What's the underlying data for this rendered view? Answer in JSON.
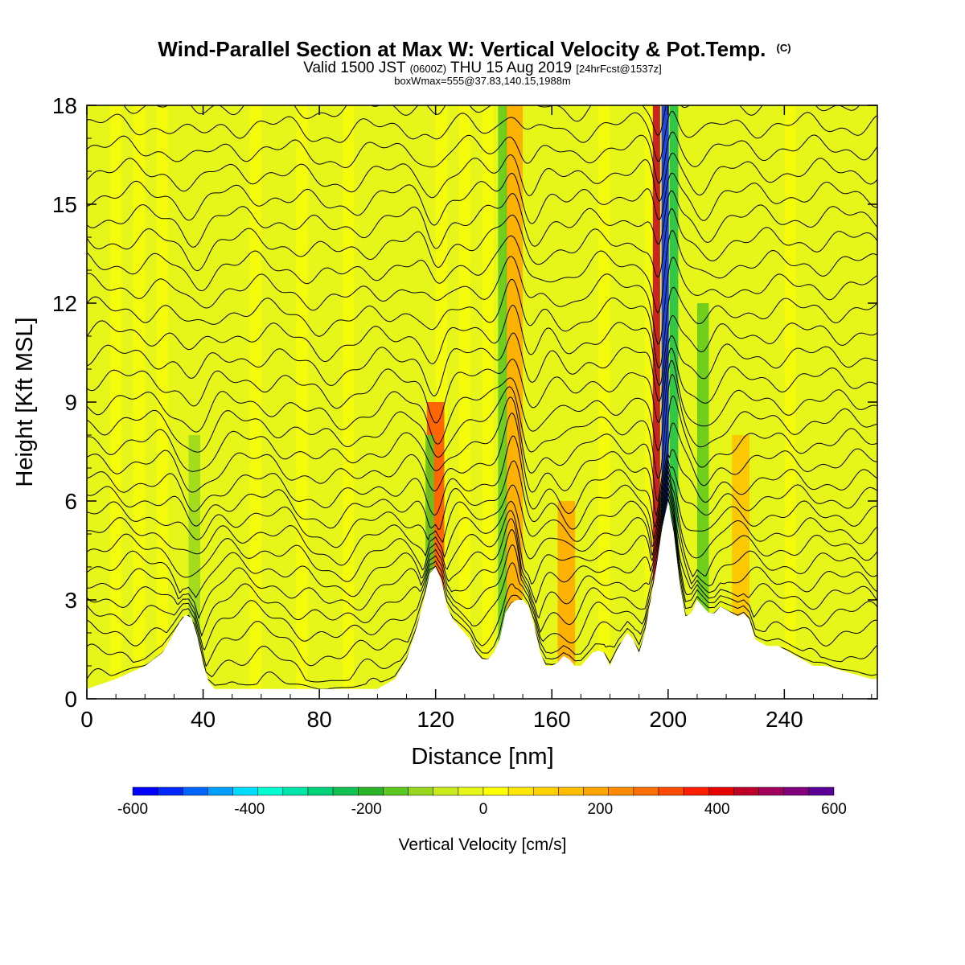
{
  "header": {
    "title": "Wind-Parallel Section at Max W: Vertical Velocity & Pot.Temp.",
    "title_mark": "(C)",
    "valid_prefix": "Valid 1500 JST",
    "valid_utc": "(0600Z)",
    "valid_date": "THU 15 Aug 2019",
    "forecast": "[24hrFcst@1537z]",
    "box_info": "boxWmax=555@37.83,140.15,1988m"
  },
  "colors": {
    "neg_600": "#0000ff",
    "neg_500": "#0050ff",
    "neg_400": "#00a0ff",
    "neg_300": "#00ffff",
    "neg_200": "#10c050",
    "neg_100": "#5ac81e",
    "neg_50": "#bbe41c",
    "zero": "#ffff00",
    "pos_100": "#ffc800",
    "pos_200": "#ff8c00",
    "pos_300": "#ff3200",
    "pos_400": "#e60000",
    "pos_500": "#a0006e",
    "pos_600": "#5a0096",
    "contour": "#000000",
    "terrain": "#ffffff"
  },
  "chart_data": {
    "type": "heatmap",
    "xlabel": "Distance [nm]",
    "ylabel": "Height [Kft MSL]",
    "xlim": [
      0,
      272
    ],
    "ylim": [
      0,
      18
    ],
    "x_ticks": [
      0,
      40,
      80,
      120,
      160,
      200,
      240
    ],
    "y_ticks": [
      0,
      3,
      6,
      9,
      12,
      15,
      18
    ],
    "colorbar": {
      "title": "Vertical Velocity [cm/s]",
      "ticks": [
        -600,
        -400,
        -200,
        0,
        200,
        400,
        600
      ],
      "colors": [
        "#0000ff",
        "#0028ff",
        "#0064ff",
        "#00a0ff",
        "#00dcff",
        "#00ffd2",
        "#00e6aa",
        "#00d278",
        "#10c050",
        "#2ab42a",
        "#5ac81e",
        "#96d71e",
        "#c8ec1c",
        "#e6f51a",
        "#ffff00",
        "#ffe600",
        "#ffd200",
        "#ffbe00",
        "#ffa500",
        "#ff8c00",
        "#ff6e00",
        "#ff4b00",
        "#ff1e00",
        "#e60000",
        "#be0028",
        "#a0005a",
        "#82007d",
        "#5a0096"
      ]
    },
    "terrain": {
      "x": [
        0,
        10,
        20,
        26,
        30,
        33,
        35,
        37,
        39,
        41,
        44,
        48,
        52,
        56,
        62,
        70,
        80,
        90,
        100,
        106,
        110,
        113,
        116,
        118,
        120,
        122,
        124,
        126,
        128,
        130,
        132,
        134,
        136,
        138,
        140,
        142,
        144,
        146,
        148,
        150,
        152,
        154,
        156,
        158,
        160,
        162,
        164,
        166,
        168,
        170,
        172,
        175,
        178,
        180,
        183,
        186,
        188,
        190,
        192,
        194,
        196,
        198,
        200,
        202,
        204,
        206,
        208,
        210,
        212,
        214,
        216,
        218,
        220,
        222,
        224,
        226,
        228,
        230,
        234,
        238,
        242,
        246,
        250,
        254,
        258,
        262,
        266,
        270,
        272
      ],
      "h": [
        0.3,
        0.6,
        1.0,
        1.4,
        2.0,
        2.5,
        2.6,
        2.3,
        1.5,
        0.6,
        0.3,
        0.3,
        0.3,
        0.3,
        0.3,
        0.3,
        0.3,
        0.3,
        0.3,
        0.6,
        1.2,
        2.0,
        3.0,
        3.8,
        4.0,
        3.6,
        2.8,
        2.4,
        2.2,
        2.0,
        1.8,
        1.4,
        1.2,
        1.2,
        1.4,
        1.8,
        2.6,
        2.9,
        3.0,
        3.0,
        2.8,
        2.2,
        1.4,
        1.0,
        1.0,
        1.1,
        1.3,
        1.2,
        1.0,
        1.0,
        1.2,
        1.5,
        1.4,
        1.0,
        1.6,
        2.0,
        1.8,
        1.4,
        2.0,
        3.0,
        4.0,
        5.2,
        6.0,
        5.0,
        3.5,
        2.5,
        2.6,
        3.0,
        2.8,
        2.6,
        2.6,
        2.8,
        2.7,
        2.6,
        2.5,
        2.6,
        2.4,
        1.8,
        1.6,
        1.6,
        1.4,
        1.2,
        1.0,
        1.0,
        0.9,
        0.8,
        0.7,
        0.6,
        0.6
      ]
    },
    "features": [
      {
        "x": 37,
        "w": 4,
        "top": 8,
        "value": -100
      },
      {
        "x": 120,
        "w": 6,
        "top": 9,
        "value": 300
      },
      {
        "x": 118,
        "w": 3,
        "top": 8,
        "value": -150
      },
      {
        "x": 147,
        "w": 6,
        "top": 18,
        "value": 200
      },
      {
        "x": 143,
        "w": 3,
        "top": 18,
        "value": -150
      },
      {
        "x": 165,
        "w": 6,
        "top": 6,
        "value": 200
      },
      {
        "x": 196,
        "w": 2.5,
        "top": 18,
        "value": 450
      },
      {
        "x": 199,
        "w": 2.5,
        "top": 18,
        "value": -555
      },
      {
        "x": 202,
        "w": 3,
        "top": 18,
        "value": -250
      },
      {
        "x": 212,
        "w": 4,
        "top": 12,
        "value": -150
      },
      {
        "x": 225,
        "w": 6,
        "top": 8,
        "value": 150
      }
    ],
    "isentropes": {
      "base_heights": [
        0.6,
        1.3,
        2.0,
        2.6,
        3.1,
        3.6,
        4.1,
        4.6,
        5.1,
        5.6,
        6.1,
        6.6,
        7.2,
        7.8,
        8.4,
        9.0,
        9.7,
        10.4,
        11.1,
        11.8,
        12.5,
        13.2,
        13.9,
        14.6,
        15.3,
        16.0,
        16.7,
        17.4,
        18.1
      ],
      "perturbations": [
        {
          "x": 37,
          "w": 6,
          "amp": -1.2
        },
        {
          "x": 85,
          "w": 14,
          "amp": -0.9
        },
        {
          "x": 120,
          "w": 4,
          "amp": -1.6
        },
        {
          "x": 147,
          "w": 4,
          "amp": 2.0
        },
        {
          "x": 152,
          "w": 5,
          "amp": -1.5
        },
        {
          "x": 166,
          "w": 6,
          "amp": -0.8
        },
        {
          "x": 197,
          "w": 2.5,
          "amp": -3.0
        },
        {
          "x": 201,
          "w": 3,
          "amp": 1.8
        },
        {
          "x": 212,
          "w": 5,
          "amp": -1.0
        }
      ]
    }
  }
}
